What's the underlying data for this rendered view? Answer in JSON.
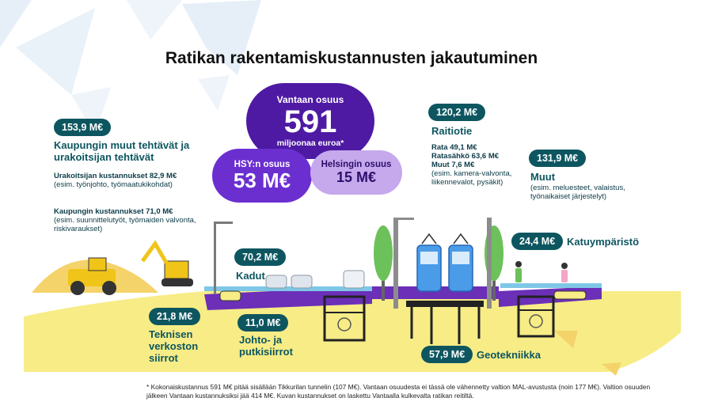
{
  "title": "Ratikan rakentamiskustannusten jakautuminen",
  "vantaa": {
    "label": "Vantaan osuus",
    "value": "591",
    "unit": "miljoonaa euroa*"
  },
  "hsy": {
    "label": "HSY:n osuus",
    "value": "53 M€"
  },
  "helsinki": {
    "label": "Helsingin osuus",
    "value": "15 M€"
  },
  "city_other": {
    "badge": "153,9 M€",
    "heading": "Kaupungin muut tehtävät ja urakoitsijan tehtävät",
    "contractor_label": "Urakoitsijan kustannukset 82,9 M€",
    "contractor_detail": "(esim. työnjohto, työmaatukikohdat)",
    "city_label": "Kaupungin kustannukset 71,0 M€",
    "city_detail": "(esim. suunnittelutyöt, työmaiden valvonta, riskivaraukset)"
  },
  "raitiotie": {
    "badge": "120,2 M€",
    "heading": "Raitiotie",
    "lines": [
      "Rata 49,1 M€",
      "Ratasähkö 63,6 M€",
      "Muut 7,6 M€"
    ],
    "detail": "(esim. kamera-valvonta, liikennevalot, pysäkit)"
  },
  "muut": {
    "badge": "131,9 M€",
    "heading": "Muut",
    "detail": "(esim. meluesteet, valaistus, työnaikaiset järjestelyt)"
  },
  "katuymparisto": {
    "badge": "24,4 M€",
    "label": "Katuympäristö"
  },
  "kadut": {
    "badge": "70,2 M€",
    "label": "Kadut"
  },
  "tekniset": {
    "badge": "21,8 M€",
    "label": "Teknisen verkoston siirrot"
  },
  "johto": {
    "badge": "11,0 M€",
    "label": "Johto- ja putkisiirrot"
  },
  "geotekniikka": {
    "badge": "57,9 M€",
    "label": "Geotekniikka"
  },
  "footnote": "* Kokonaiskustannus 591 M€ pitää sisällään Tikkurilan tunnelin (107 M€). Vantaan osuudesta ei tässä ole vähennetty valtion MAL-avustusta (noin 177 M€). Valtion osuuden jälkeen Vantaan kustannuksiksi jää 414 M€. Kuvan kustannukset on laskettu Vantaalla kulkevalta ratikan reitiltä.",
  "colors": {
    "teal": "#0d5660",
    "purple": "#4e1aa3",
    "lilac": "#c6a8ec",
    "yellow": "#f7ec86",
    "ghost": "#e6eff8"
  }
}
